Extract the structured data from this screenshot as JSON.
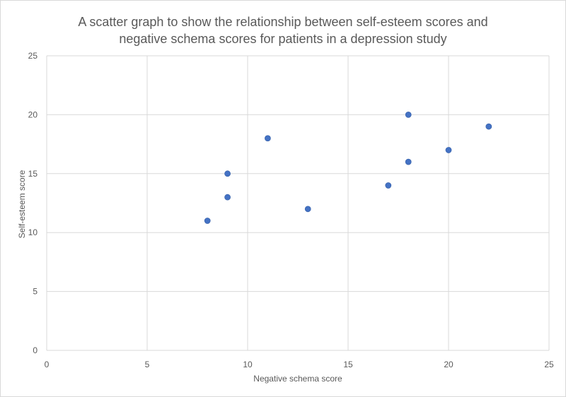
{
  "chart_data": {
    "type": "scatter",
    "title_lines": [
      "A scatter graph to show the relationship between self-esteem scores and",
      "negative schema scores for patients in a depression study"
    ],
    "xlabel": "Negative schema score",
    "ylabel": "Self-esteem score",
    "xlim": [
      0,
      25
    ],
    "ylim": [
      0,
      25
    ],
    "xticks": [
      0,
      5,
      10,
      15,
      20,
      25
    ],
    "yticks": [
      0,
      5,
      10,
      15,
      20,
      25
    ],
    "grid": true,
    "marker_color": "#4472c4",
    "series": [
      {
        "points": [
          {
            "x": 8,
            "y": 11
          },
          {
            "x": 9,
            "y": 13
          },
          {
            "x": 9,
            "y": 15
          },
          {
            "x": 11,
            "y": 18
          },
          {
            "x": 13,
            "y": 12
          },
          {
            "x": 17,
            "y": 14
          },
          {
            "x": 18,
            "y": 16
          },
          {
            "x": 18,
            "y": 20
          },
          {
            "x": 20,
            "y": 17
          },
          {
            "x": 22,
            "y": 19
          }
        ]
      }
    ]
  }
}
